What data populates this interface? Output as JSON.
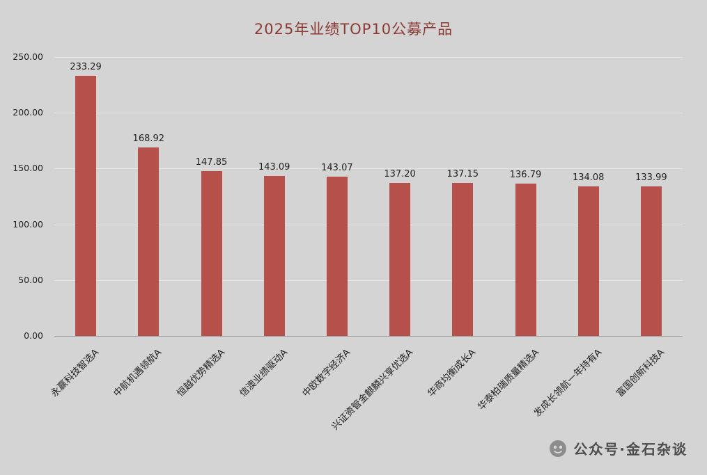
{
  "watermark": {
    "text": "公众号·金石杂谈"
  },
  "chart_data": {
    "type": "bar",
    "title": "2025年业绩TOP10公募产品",
    "categories": [
      "永赢科技智选A",
      "中航机遇领航A",
      "恒越优势精选A",
      "信澳业绩驱动A",
      "中欧数字经济A",
      "兴证资管金麒麟兴享优选A",
      "华商均衡成长A",
      "华泰柏瑞质量精选A",
      "发成长领航一年持有A",
      "富国创新科技A"
    ],
    "values": [
      233.29,
      168.92,
      147.85,
      143.09,
      143.07,
      137.2,
      137.15,
      136.79,
      134.08,
      133.99
    ],
    "value_labels": [
      "233.29",
      "168.92",
      "147.85",
      "143.09",
      "143.07",
      "137.20",
      "137.15",
      "136.79",
      "134.08",
      "133.99"
    ],
    "xlabel": "",
    "ylabel": "",
    "ylim": [
      0,
      250
    ],
    "yticks": [
      0,
      50,
      100,
      150,
      200,
      250
    ],
    "ytick_labels": [
      "0.00",
      "50.00",
      "100.00",
      "150.00",
      "200.00",
      "250.00"
    ],
    "grid": true,
    "legend_position": "none",
    "bar_color": "#b5504b",
    "background_color": "#d4d4d4",
    "title_color": "#8b3a33"
  }
}
